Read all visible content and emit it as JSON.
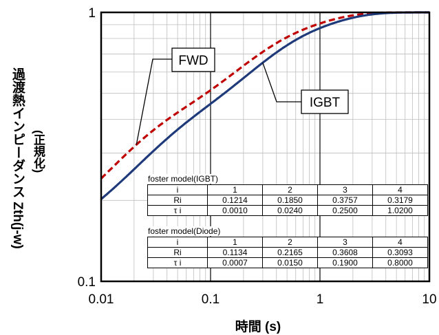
{
  "chart_data": {
    "type": "line",
    "xscale": "log",
    "yscale": "log",
    "xlim": [
      0.01,
      10
    ],
    "ylim": [
      0.1,
      1
    ],
    "grid": true,
    "xticks": [
      "0.01",
      "0.1",
      "1",
      "10"
    ],
    "yticks": [
      "0.1",
      "1"
    ],
    "xlabel": "時間 (s)",
    "ylabel": "過渡熱インピーダンス Zth(j-w)",
    "ylabel2": "(正規化)",
    "series": [
      {
        "name": "FWD",
        "color": "#c00000",
        "dash": true,
        "rth": [
          0.1134,
          0.2165,
          0.3608,
          0.3093
        ],
        "tau": [
          0.0007,
          0.015,
          0.19,
          0.8
        ]
      },
      {
        "name": "IGBT",
        "color": "#1f3a7a",
        "dash": false,
        "rth": [
          0.1214,
          0.185,
          0.3757,
          0.3179
        ],
        "tau": [
          0.001,
          0.024,
          0.25,
          1.02
        ]
      }
    ]
  },
  "tables": [
    {
      "title": "foster model(IGBT)",
      "header": [
        "i",
        "1",
        "2",
        "3",
        "4"
      ],
      "rows": [
        [
          "Ri",
          "0.1214",
          "0.1850",
          "0.3757",
          "0.3179"
        ],
        [
          "τ i",
          "0.0010",
          "0.0240",
          "0.2500",
          "1.0200"
        ]
      ]
    },
    {
      "title": "foster model(Diode)",
      "header": [
        "i",
        "1",
        "2",
        "3",
        "4"
      ],
      "rows": [
        [
          "Ri",
          "0.1134",
          "0.2165",
          "0.3608",
          "0.3093"
        ],
        [
          "τ i",
          "0.0007",
          "0.0150",
          "0.1900",
          "0.8000"
        ]
      ]
    }
  ]
}
